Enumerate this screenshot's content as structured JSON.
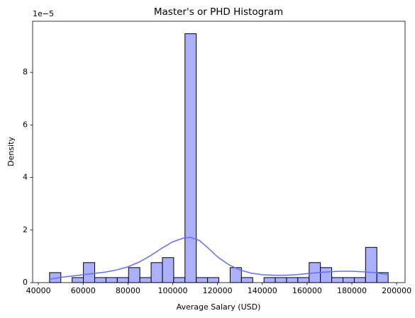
{
  "chart_data": {
    "type": "histogram",
    "title": "Master's or PHD Histogram",
    "x_label": "Average Salary (USD)",
    "y_label": "Density",
    "y_offset_label": "1e−5",
    "bins": [
      45000,
      50040,
      55080,
      60120,
      65160,
      70200,
      75240,
      80280,
      85320,
      90360,
      95400,
      100440,
      105480,
      110520,
      115560,
      120600,
      125640,
      130680,
      135720,
      140760,
      145800,
      150840,
      155880,
      160920,
      165960,
      171000,
      176040,
      181080,
      186120,
      191160,
      196200
    ],
    "values": [
      3.8e-06,
      0,
      1.9e-06,
      7.6e-06,
      1.9e-06,
      1.9e-06,
      1.9e-06,
      5.7e-06,
      1.9e-06,
      7.6e-06,
      9.5e-06,
      1.9e-06,
      9.47e-05,
      1.9e-06,
      1.9e-06,
      0,
      5.7e-06,
      1.9e-06,
      0,
      1.9e-06,
      1.9e-06,
      1.9e-06,
      1.9e-06,
      7.6e-06,
      5.7e-06,
      1.9e-06,
      1.9e-06,
      1.9e-06,
      1.34e-05,
      3.8e-06
    ],
    "color": "#aab0f9",
    "edge_color": "#000000",
    "kde": {
      "color": "#636efa",
      "x": [
        45000,
        50000,
        55000,
        60000,
        65000,
        70000,
        75000,
        80000,
        85000,
        90000,
        95000,
        100000,
        105000,
        108000,
        112000,
        116000,
        120000,
        125000,
        130000,
        135000,
        140000,
        145000,
        150000,
        155000,
        160000,
        165000,
        170000,
        175000,
        180000,
        185000,
        190000,
        196200
      ],
      "values": [
        1.3e-06,
        2e-06,
        2.5e-06,
        3e-06,
        3.5e-06,
        4e-06,
        4.8e-06,
        6e-06,
        7.8e-06,
        1.02e-05,
        1.3e-05,
        1.55e-05,
        1.7e-05,
        1.72e-05,
        1.6e-05,
        1.3e-05,
        9.8e-06,
        6.8e-06,
        4.8e-06,
        3.6e-06,
        3e-06,
        2.8e-06,
        2.8e-06,
        3e-06,
        3.4e-06,
        3.8e-06,
        4.1e-06,
        4.3e-06,
        4.3e-06,
        4.1e-06,
        3.8e-06,
        3e-06
      ]
    },
    "xlim": [
      37440,
      203760
    ],
    "ylim": [
      0,
      9.945e-05
    ],
    "xticks": [
      40000,
      60000,
      80000,
      100000,
      120000,
      140000,
      160000,
      180000,
      200000
    ],
    "yticks": [
      0,
      {
        "value": 2e-05,
        "label": "2"
      },
      {
        "value": 4e-05,
        "label": "4"
      },
      {
        "value": 6e-05,
        "label": "6"
      },
      {
        "value": 8e-05,
        "label": "8"
      }
    ]
  }
}
